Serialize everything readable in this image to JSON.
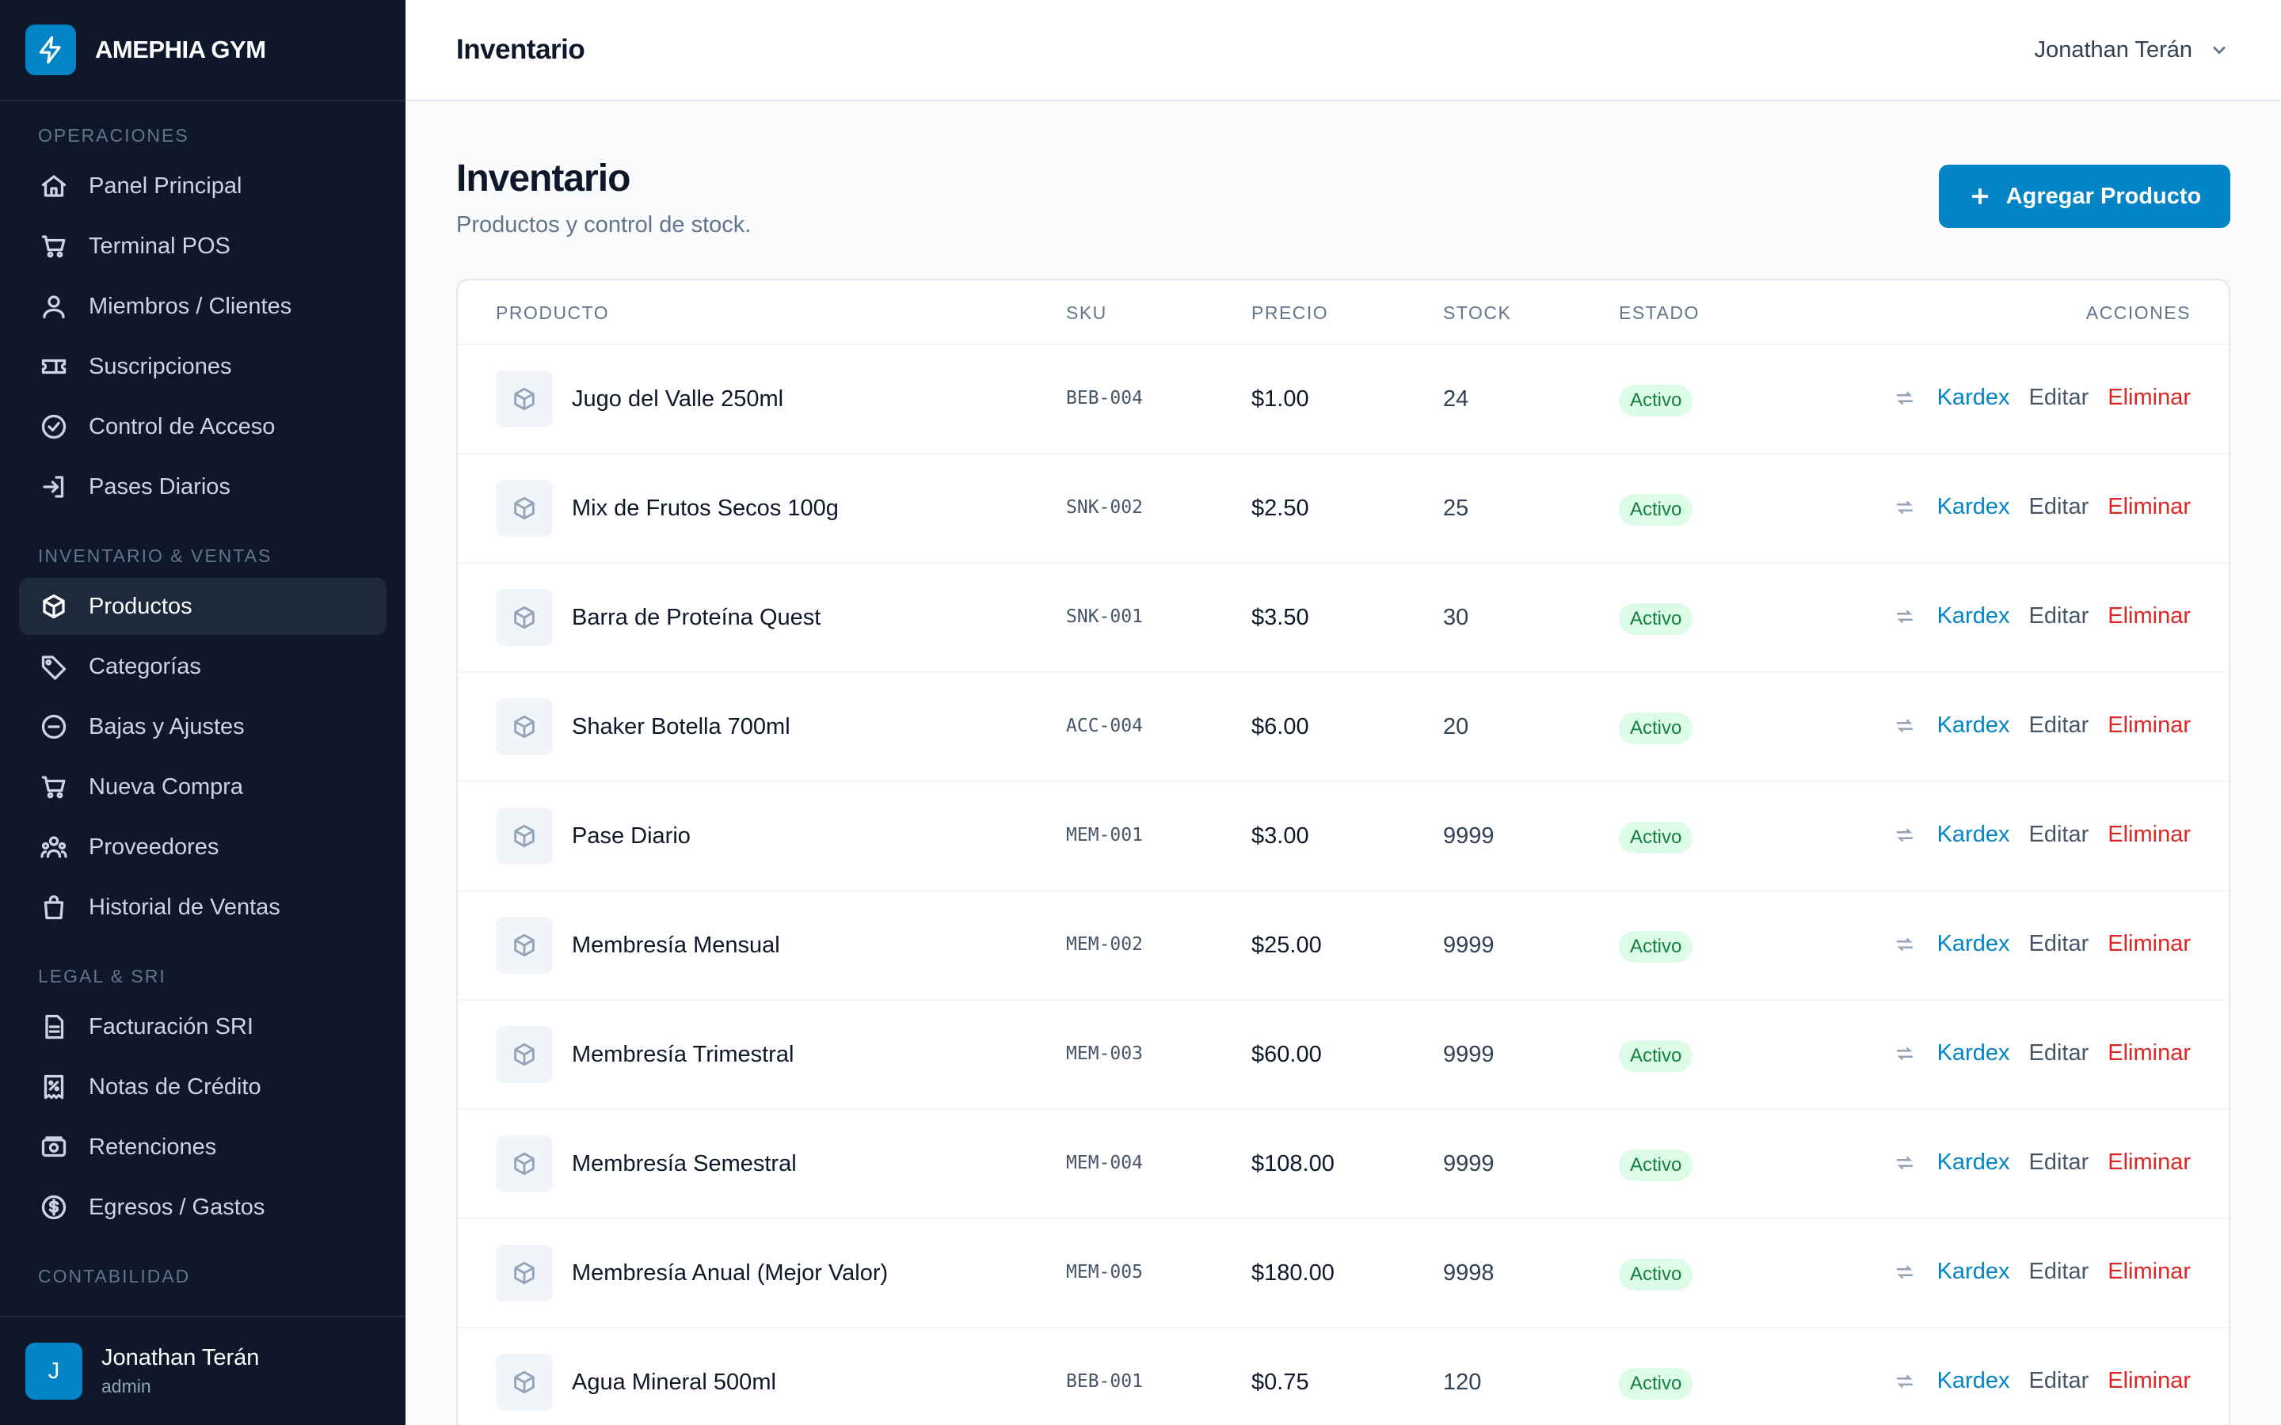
{
  "brand": {
    "name": "AMEPHIA GYM",
    "accent": "#0284c7"
  },
  "sidebar": {
    "sections": [
      {
        "title": "OPERACIONES",
        "items": [
          {
            "label": "Panel Principal",
            "icon": "home-icon"
          },
          {
            "label": "Terminal POS",
            "icon": "cart-icon"
          },
          {
            "label": "Miembros / Clientes",
            "icon": "users-icon"
          },
          {
            "label": "Suscripciones",
            "icon": "ticket-icon"
          },
          {
            "label": "Control de Acceso",
            "icon": "check-circle-icon"
          },
          {
            "label": "Pases Diarios",
            "icon": "login-icon"
          }
        ]
      },
      {
        "title": "INVENTARIO & VENTAS",
        "items": [
          {
            "label": "Productos",
            "icon": "box-icon",
            "active": true
          },
          {
            "label": "Categorías",
            "icon": "tag-icon"
          },
          {
            "label": "Bajas y Ajustes",
            "icon": "minus-circle-icon"
          },
          {
            "label": "Nueva Compra",
            "icon": "cart-icon"
          },
          {
            "label": "Proveedores",
            "icon": "users-group-icon"
          },
          {
            "label": "Historial de Ventas",
            "icon": "bag-icon"
          }
        ]
      },
      {
        "title": "LEGAL & SRI",
        "items": [
          {
            "label": "Facturación SRI",
            "icon": "document-icon"
          },
          {
            "label": "Notas de Crédito",
            "icon": "receipt-icon"
          },
          {
            "label": "Retenciones",
            "icon": "cash-icon"
          },
          {
            "label": "Egresos / Gastos",
            "icon": "dollar-circle-icon"
          }
        ]
      },
      {
        "title": "CONTABILIDAD",
        "items": []
      }
    ],
    "user": {
      "initial": "J",
      "name": "Jonathan Terán",
      "role": "admin"
    }
  },
  "header": {
    "title": "Inventario",
    "user_name": "Jonathan Terán"
  },
  "page": {
    "title": "Inventario",
    "subtitle": "Productos y control de stock.",
    "add_button": "Agregar Producto"
  },
  "table": {
    "columns": [
      "PRODUCTO",
      "SKU",
      "PRECIO",
      "STOCK",
      "ESTADO",
      "ACCIONES"
    ],
    "action_labels": {
      "kardex": "Kardex",
      "edit": "Editar",
      "delete": "Eliminar"
    },
    "rows": [
      {
        "name": "Jugo del Valle 250ml",
        "sku": "BEB-004",
        "price": "$1.00",
        "stock": "24",
        "status": "Activo"
      },
      {
        "name": "Mix de Frutos Secos 100g",
        "sku": "SNK-002",
        "price": "$2.50",
        "stock": "25",
        "status": "Activo"
      },
      {
        "name": "Barra de Proteína Quest",
        "sku": "SNK-001",
        "price": "$3.50",
        "stock": "30",
        "status": "Activo"
      },
      {
        "name": "Shaker Botella 700ml",
        "sku": "ACC-004",
        "price": "$6.00",
        "stock": "20",
        "status": "Activo"
      },
      {
        "name": "Pase Diario",
        "sku": "MEM-001",
        "price": "$3.00",
        "stock": "9999",
        "status": "Activo"
      },
      {
        "name": "Membresía Mensual",
        "sku": "MEM-002",
        "price": "$25.00",
        "stock": "9999",
        "status": "Activo"
      },
      {
        "name": "Membresía Trimestral",
        "sku": "MEM-003",
        "price": "$60.00",
        "stock": "9999",
        "status": "Activo"
      },
      {
        "name": "Membresía Semestral",
        "sku": "MEM-004",
        "price": "$108.00",
        "stock": "9999",
        "status": "Activo"
      },
      {
        "name": "Membresía Anual (Mejor Valor)",
        "sku": "MEM-005",
        "price": "$180.00",
        "stock": "9998",
        "status": "Activo"
      },
      {
        "name": "Agua Mineral 500ml",
        "sku": "BEB-001",
        "price": "$0.75",
        "stock": "120",
        "status": "Activo"
      }
    ]
  }
}
